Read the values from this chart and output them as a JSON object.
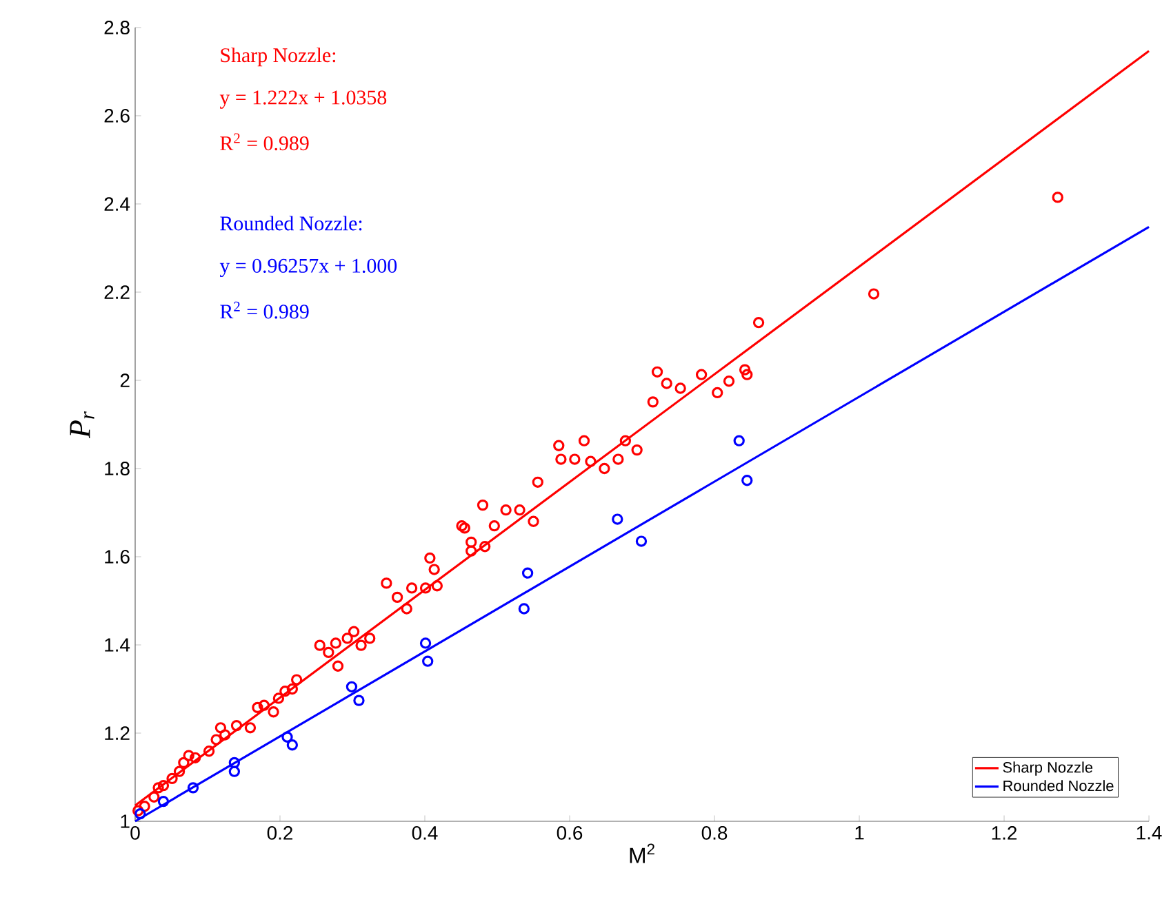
{
  "chart_data": {
    "type": "scatter",
    "xlabel": "M$^{2}$",
    "ylabel": "P$_{r}$",
    "xlim": [
      0,
      1.4
    ],
    "ylim": [
      1,
      2.8
    ],
    "xticks": [
      0,
      0.2,
      0.4,
      0.6,
      0.8,
      1,
      1.2,
      1.4
    ],
    "yticks": [
      1,
      1.2,
      1.4,
      1.6,
      1.8,
      2,
      2.2,
      2.4,
      2.6,
      2.8
    ],
    "grid": false,
    "legend": "bottom right",
    "marker": "circle",
    "annotations": [
      "Sharp Nozzle:",
      "y = 1.222x + 1.0358",
      "R$^{2}$ = 0.989",
      "Rounded Nozzle:",
      "y = 0.96257x + 1.000",
      "R$^{2}$ = 0.989"
    ],
    "series": [
      {
        "color": "#ff0000",
        "x": [
          0.004,
          0.013,
          0.026,
          0.032,
          0.039,
          0.051,
          0.061,
          0.067,
          0.074,
          0.083,
          0.102,
          0.112,
          0.118,
          0.124,
          0.14,
          0.159,
          0.169,
          0.178,
          0.191,
          0.198,
          0.207,
          0.217,
          0.223,
          0.255,
          0.267,
          0.28,
          0.277,
          0.293,
          0.302,
          0.312,
          0.324,
          0.347,
          0.362,
          0.375,
          0.382,
          0.401,
          0.413,
          0.407,
          0.417,
          0.451,
          0.464,
          0.483,
          0.455,
          0.48,
          0.464,
          0.496,
          0.512,
          0.531,
          0.55,
          0.556,
          0.585,
          0.588,
          0.607,
          0.62,
          0.629,
          0.648,
          0.667,
          0.677,
          0.693,
          0.715,
          0.721,
          0.734,
          0.753,
          0.782,
          0.804,
          0.82,
          0.842,
          0.845,
          0.861,
          1.02,
          1.274
        ],
        "values": [
          1.024,
          1.034,
          1.055,
          1.076,
          1.081,
          1.097,
          1.113,
          1.133,
          1.149,
          1.144,
          1.159,
          1.185,
          1.212,
          1.196,
          1.217,
          1.212,
          1.258,
          1.263,
          1.248,
          1.279,
          1.295,
          1.3,
          1.321,
          1.399,
          1.383,
          1.352,
          1.404,
          1.415,
          1.43,
          1.399,
          1.415,
          1.54,
          1.508,
          1.482,
          1.529,
          1.529,
          1.571,
          1.597,
          1.534,
          1.67,
          1.613,
          1.623,
          1.665,
          1.717,
          1.633,
          1.67,
          1.706,
          1.706,
          1.68,
          1.769,
          1.852,
          1.821,
          1.821,
          1.863,
          1.816,
          1.8,
          1.821,
          1.863,
          1.842,
          1.951,
          2.019,
          1.993,
          1.982,
          2.013,
          1.972,
          1.998,
          2.024,
          2.013,
          2.131,
          2.196,
          2.415
        ]
      },
      {
        "color": "#0000ff",
        "x": [
          0.007,
          0.039,
          0.08,
          0.137,
          0.137,
          0.21,
          0.217,
          0.299,
          0.309,
          0.401,
          0.404,
          0.537,
          0.542,
          0.666,
          0.699,
          0.834,
          0.845
        ],
        "values": [
          1.017,
          1.045,
          1.076,
          1.133,
          1.113,
          1.191,
          1.173,
          1.305,
          1.274,
          1.404,
          1.363,
          1.482,
          1.563,
          1.685,
          1.635,
          1.863,
          1.773
        ]
      },
      {
        "type": "line",
        "marker": "none",
        "name": "Sharp Nozzle",
        "color": "#ff0000",
        "x": [
          0,
          1.4
        ],
        "values": [
          1.036,
          2.747
        ]
      },
      {
        "type": "line",
        "marker": "none",
        "name": "Rounded Nozzle",
        "color": "#0000ff",
        "x": [
          0,
          1.4
        ],
        "values": [
          1.0,
          2.348
        ]
      }
    ]
  }
}
